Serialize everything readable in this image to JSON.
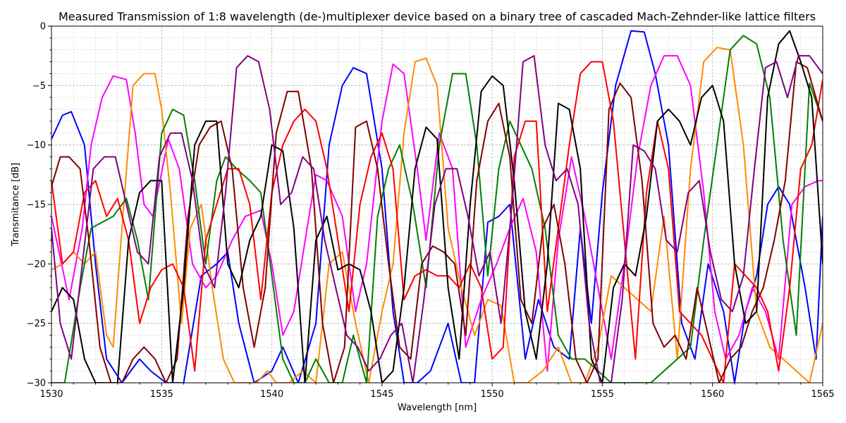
{
  "chart_data": {
    "type": "line",
    "title": "Measured Transmission of 1:8 wavelength (de-)multiplexer device based on a binary tree of cascaded Mach-Zehnder-like lattice filters",
    "xlabel": "Wavelength [nm]",
    "ylabel": "Transmitance [dB]",
    "xlim": [
      1530,
      1565
    ],
    "ylim": [
      -30,
      0
    ],
    "x_ticks": [
      1530,
      1535,
      1540,
      1545,
      1550,
      1555,
      1560,
      1565
    ],
    "x_tick_labels": [
      "1530",
      "1535",
      "1540",
      "1545",
      "1550",
      "1555",
      "1560",
      "1565"
    ],
    "y_ticks": [
      0,
      -5,
      -10,
      -15,
      -20,
      -25,
      -30
    ],
    "y_tick_labels": [
      "0",
      "−5",
      "−10",
      "−15",
      "−20",
      "−25",
      "−30"
    ],
    "grid": true,
    "series": [
      {
        "color": "#0000ff",
        "x": [
          1530.0,
          1530.5,
          1530.9,
          1531.5,
          1532.0,
          1532.5,
          1533.2,
          1534.0,
          1534.5,
          1535.2,
          1536.0,
          1536.8,
          1537.5,
          1538.0,
          1538.5,
          1539.2,
          1540.0,
          1540.5,
          1541.2,
          1542.0,
          1542.6,
          1543.2,
          1543.7,
          1544.3,
          1545.0,
          1545.5,
          1546.0,
          1546.6,
          1547.2,
          1548.0,
          1548.6,
          1549.2,
          1549.8,
          1550.3,
          1550.8,
          1551.5,
          1552.1,
          1552.8,
          1553.5,
          1554.0,
          1554.5,
          1555.0,
          1555.6,
          1556.3,
          1556.9,
          1557.4,
          1558.0,
          1558.6,
          1559.2,
          1559.8,
          1560.5,
          1561.0,
          1561.5,
          1562.0,
          1562.5,
          1563.0,
          1563.5,
          1564.2,
          1564.7,
          1565.0
        ],
        "y": [
          -9.5,
          -7.5,
          -7.2,
          -10,
          -20,
          -28,
          -30,
          -28,
          -29,
          -30,
          -30,
          -21,
          -20,
          -19,
          -25,
          -30,
          -29,
          -27,
          -30,
          -25,
          -10,
          -5,
          -3.5,
          -4,
          -12,
          -24,
          -30,
          -30,
          -29,
          -25,
          -30,
          -30,
          -16.5,
          -16,
          -15,
          -28,
          -23,
          -27,
          -28,
          -17,
          -25,
          -14,
          -5,
          -0.4,
          -0.5,
          -4,
          -10,
          -25,
          -28,
          -20,
          -24,
          -30,
          -24,
          -21,
          -15,
          -13.5,
          -15,
          -22,
          -28,
          -16
        ]
      },
      {
        "color": "#ff00ff",
        "x": [
          1530.0,
          1530.8,
          1531.4,
          1531.8,
          1532.3,
          1532.8,
          1533.4,
          1533.8,
          1534.2,
          1534.6,
          1535.3,
          1535.8,
          1536.4,
          1537.0,
          1537.5,
          1538.2,
          1538.8,
          1539.5,
          1540.0,
          1540.5,
          1541.0,
          1541.6,
          1542.0,
          1542.5,
          1543.2,
          1543.8,
          1544.3,
          1545.0,
          1545.5,
          1546.0,
          1546.6,
          1547.0,
          1547.6,
          1548.2,
          1548.8,
          1549.5,
          1550.2,
          1550.8,
          1551.4,
          1552.0,
          1552.5,
          1553.0,
          1553.6,
          1554.2,
          1554.8,
          1555.4,
          1556.0,
          1556.6,
          1557.2,
          1557.8,
          1558.4,
          1559.0,
          1559.6,
          1560.1,
          1560.6,
          1561.2,
          1561.8,
          1562.4,
          1563.0,
          1563.6,
          1564.2,
          1564.8,
          1565.0
        ],
        "y": [
          -16,
          -23,
          -17,
          -10,
          -6,
          -4.2,
          -4.5,
          -9,
          -15,
          -16,
          -9.5,
          -12,
          -20,
          -22,
          -21,
          -18,
          -16,
          -15.5,
          -20,
          -26,
          -24,
          -17,
          -12.5,
          -13,
          -16,
          -24,
          -20,
          -8,
          -3.2,
          -4,
          -12,
          -18,
          -9,
          -12,
          -27,
          -23,
          -20,
          -17,
          -14.5,
          -19,
          -29,
          -18,
          -11,
          -16,
          -22,
          -28,
          -20,
          -11,
          -5,
          -2.5,
          -2.5,
          -5,
          -14,
          -24,
          -28,
          -26,
          -22,
          -24,
          -28,
          -15,
          -13.5,
          -13,
          -13
        ]
      },
      {
        "color": "#ff8c00",
        "x": [
          1530.0,
          1530.5,
          1531.0,
          1531.5,
          1532.0,
          1532.5,
          1532.8,
          1533.2,
          1533.7,
          1534.2,
          1534.7,
          1535.0,
          1535.4,
          1535.9,
          1536.3,
          1536.8,
          1537.3,
          1537.8,
          1538.3,
          1538.8,
          1539.3,
          1539.8,
          1540.2,
          1540.8,
          1541.4,
          1542.0,
          1542.6,
          1543.2,
          1543.8,
          1544.4,
          1545.0,
          1545.5,
          1546.0,
          1546.5,
          1547.0,
          1547.5,
          1548.0,
          1548.6,
          1549.2,
          1549.8,
          1550.4,
          1551.0,
          1551.6,
          1552.3,
          1553.0,
          1553.6,
          1554.2,
          1554.8,
          1555.4,
          1556.0,
          1556.6,
          1557.2,
          1557.8,
          1558.4,
          1559.0,
          1559.6,
          1560.2,
          1560.8,
          1561.4,
          1562.0,
          1562.6,
          1563.2,
          1563.8,
          1564.4,
          1565.0
        ],
        "y": [
          -20.5,
          -20,
          -19,
          -20,
          -19,
          -26,
          -27,
          -17,
          -5,
          -4,
          -4,
          -7,
          -14,
          -25,
          -17,
          -15,
          -22,
          -28,
          -30,
          -30,
          -30,
          -29,
          -30,
          -30,
          -29,
          -30,
          -20,
          -19,
          -25,
          -30,
          -24,
          -20,
          -9,
          -3,
          -2.7,
          -5,
          -17,
          -22,
          -26,
          -23,
          -23.5,
          -30,
          -30,
          -29,
          -27,
          -30,
          -30,
          -27,
          -21,
          -22,
          -23,
          -24,
          -16,
          -28,
          -12,
          -3,
          -1.8,
          -2,
          -10,
          -24,
          -27,
          -28,
          -29,
          -30,
          -25
        ]
      },
      {
        "color": "#008000",
        "x": [
          1530.0,
          1530.6,
          1531.3,
          1531.8,
          1532.3,
          1532.8,
          1533.4,
          1533.9,
          1534.4,
          1535.0,
          1535.5,
          1536.0,
          1536.5,
          1537.0,
          1537.5,
          1537.9,
          1538.4,
          1539.0,
          1539.5,
          1540.0,
          1540.5,
          1541.0,
          1541.5,
          1542.0,
          1542.6,
          1543.2,
          1543.7,
          1544.3,
          1544.8,
          1545.3,
          1545.8,
          1546.4,
          1547.0,
          1547.6,
          1548.2,
          1548.8,
          1549.3,
          1549.8,
          1550.3,
          1550.8,
          1551.3,
          1551.8,
          1552.4,
          1553.0,
          1553.6,
          1554.2,
          1554.8,
          1555.4,
          1556.0,
          1556.6,
          1557.2,
          1557.8,
          1558.4,
          1559.0,
          1559.6,
          1560.2,
          1560.8,
          1561.4,
          1562.0,
          1562.6,
          1563.2,
          1563.8,
          1564.4,
          1565.0
        ],
        "y": [
          -30,
          -30,
          -22,
          -17,
          -16.5,
          -16,
          -14.5,
          -18,
          -23,
          -9,
          -7,
          -7.5,
          -13,
          -20,
          -13,
          -11,
          -12,
          -13,
          -14,
          -21,
          -28,
          -30,
          -30,
          -28,
          -30,
          -30,
          -26,
          -30,
          -16,
          -12,
          -10,
          -15,
          -22,
          -10,
          -4,
          -4,
          -10,
          -21,
          -12,
          -8,
          -10,
          -12,
          -17,
          -26,
          -28,
          -28,
          -29,
          -30,
          -30,
          -30,
          -30,
          -29,
          -28,
          -27,
          -18,
          -10,
          -2,
          -0.8,
          -1.5,
          -6,
          -18,
          -26,
          -4.8,
          -8
        ]
      },
      {
        "color": "#ff0000",
        "x": [
          1530.0,
          1530.5,
          1531.0,
          1531.5,
          1532.0,
          1532.5,
          1533.0,
          1533.5,
          1534.0,
          1534.5,
          1535.0,
          1535.5,
          1536.0,
          1536.5,
          1537.0,
          1537.5,
          1538.0,
          1538.5,
          1539.0,
          1539.5,
          1540.0,
          1540.5,
          1541.0,
          1541.5,
          1542.0,
          1542.5,
          1543.0,
          1543.5,
          1544.0,
          1544.5,
          1545.0,
          1545.5,
          1546.0,
          1546.5,
          1547.0,
          1547.5,
          1548.0,
          1548.5,
          1549.0,
          1549.5,
          1550.0,
          1550.5,
          1551.0,
          1551.5,
          1552.0,
          1552.5,
          1553.0,
          1553.5,
          1554.0,
          1554.5,
          1555.0,
          1555.5,
          1556.0,
          1556.5,
          1557.0,
          1557.5,
          1558.0,
          1558.5,
          1559.0,
          1559.5,
          1560.0,
          1560.5,
          1561.0,
          1561.5,
          1562.0,
          1562.5,
          1563.0,
          1563.5,
          1564.0,
          1564.5,
          1565.0
        ],
        "y": [
          -13,
          -20,
          -19,
          -14,
          -13,
          -16,
          -14.5,
          -18,
          -25,
          -22,
          -20.5,
          -20,
          -22,
          -29,
          -18,
          -15,
          -12,
          -12,
          -15,
          -23,
          -14,
          -10,
          -8,
          -7,
          -8,
          -12,
          -18,
          -24,
          -15,
          -11,
          -9,
          -12,
          -23,
          -21,
          -20.5,
          -21,
          -21,
          -22,
          -20,
          -22,
          -28,
          -27,
          -11,
          -8,
          -8,
          -24,
          -17,
          -10,
          -4,
          -3,
          -3,
          -8,
          -18,
          -28,
          -14,
          -8,
          -12,
          -24,
          -25,
          -26,
          -28,
          -30,
          -20,
          -21,
          -22,
          -24,
          -29,
          -22,
          -12,
          -10,
          -4.5
        ]
      },
      {
        "color": "#800000",
        "x": [
          1530.0,
          1530.4,
          1530.8,
          1531.3,
          1531.7,
          1532.2,
          1532.7,
          1533.2,
          1533.7,
          1534.2,
          1534.7,
          1535.2,
          1535.7,
          1536.2,
          1536.7,
          1537.2,
          1537.7,
          1538.2,
          1538.7,
          1539.2,
          1539.7,
          1540.2,
          1540.7,
          1541.2,
          1541.8,
          1542.3,
          1542.8,
          1543.3,
          1543.8,
          1544.3,
          1544.8,
          1545.3,
          1545.8,
          1546.3,
          1546.8,
          1547.3,
          1547.8,
          1548.3,
          1548.8,
          1549.3,
          1549.8,
          1550.3,
          1550.8,
          1551.3,
          1551.8,
          1552.3,
          1552.8,
          1553.3,
          1553.8,
          1554.3,
          1554.8,
          1555.3,
          1555.8,
          1556.3,
          1556.8,
          1557.3,
          1557.8,
          1558.3,
          1558.8,
          1559.3,
          1559.8,
          1560.3,
          1560.8,
          1561.3,
          1561.8,
          1562.3,
          1562.8,
          1563.3,
          1563.8,
          1564.3,
          1565.0
        ],
        "y": [
          -13.5,
          -11,
          -11,
          -12,
          -18,
          -27,
          -30,
          -30,
          -28,
          -27,
          -28,
          -30,
          -28,
          -16,
          -10,
          -8.5,
          -8,
          -12,
          -22,
          -27,
          -22,
          -9,
          -5.5,
          -5.5,
          -12,
          -25,
          -30,
          -27,
          -8.5,
          -8,
          -12,
          -20,
          -27,
          -28,
          -20,
          -18.5,
          -19,
          -20,
          -26,
          -13,
          -8,
          -6.5,
          -11,
          -23,
          -25,
          -17,
          -15,
          -20,
          -28,
          -30,
          -28,
          -7,
          -4.8,
          -6,
          -13,
          -25,
          -27,
          -26,
          -28,
          -22,
          -26,
          -30,
          -28,
          -27,
          -24,
          -22,
          -18,
          -13,
          -3,
          -3.5,
          -8
        ]
      },
      {
        "color": "#000000",
        "x": [
          1530.0,
          1530.5,
          1531.0,
          1531.5,
          1532.0,
          1532.5,
          1533.0,
          1533.5,
          1534.0,
          1534.5,
          1535.0,
          1535.5,
          1536.0,
          1536.5,
          1537.0,
          1537.5,
          1538.0,
          1538.5,
          1539.0,
          1539.5,
          1540.0,
          1540.5,
          1541.0,
          1541.5,
          1542.0,
          1542.5,
          1543.0,
          1543.5,
          1544.0,
          1544.5,
          1545.0,
          1545.5,
          1546.0,
          1546.5,
          1547.0,
          1547.5,
          1548.0,
          1548.5,
          1549.0,
          1549.5,
          1550.0,
          1550.5,
          1551.0,
          1551.5,
          1552.0,
          1552.5,
          1553.0,
          1553.5,
          1554.0,
          1554.5,
          1555.0,
          1555.5,
          1556.0,
          1556.5,
          1557.0,
          1557.5,
          1558.0,
          1558.5,
          1559.0,
          1559.5,
          1560.0,
          1560.5,
          1561.0,
          1561.5,
          1562.0,
          1562.5,
          1563.0,
          1563.5,
          1564.0,
          1564.5,
          1565.0
        ],
        "y": [
          -24,
          -22,
          -23,
          -28,
          -30,
          -30,
          -30,
          -18,
          -14,
          -13,
          -13,
          -30,
          -22,
          -10,
          -8,
          -8,
          -20,
          -22,
          -18,
          -16,
          -10,
          -10.5,
          -17,
          -30,
          -18,
          -16,
          -20.5,
          -20,
          -20.5,
          -24,
          -30,
          -29,
          -22,
          -12,
          -8.5,
          -9.5,
          -22,
          -28,
          -15,
          -5.5,
          -4.2,
          -5,
          -13,
          -24,
          -28,
          -20,
          -6.5,
          -7,
          -12,
          -28,
          -30,
          -22,
          -20,
          -21,
          -16,
          -8,
          -7,
          -8,
          -10,
          -6,
          -5,
          -8,
          -20,
          -25,
          -24,
          -6,
          -1.5,
          -0.4,
          -3,
          -6,
          -20
        ]
      },
      {
        "color": "#800080",
        "x": [
          1530.0,
          1530.4,
          1530.9,
          1531.4,
          1531.9,
          1532.4,
          1532.9,
          1533.4,
          1533.9,
          1534.4,
          1534.9,
          1535.4,
          1535.9,
          1536.4,
          1536.9,
          1537.4,
          1537.9,
          1538.4,
          1538.9,
          1539.4,
          1539.9,
          1540.4,
          1540.9,
          1541.4,
          1541.9,
          1542.4,
          1542.9,
          1543.4,
          1543.9,
          1544.4,
          1544.9,
          1545.4,
          1545.9,
          1546.4,
          1546.9,
          1547.4,
          1547.9,
          1548.4,
          1548.9,
          1549.4,
          1549.9,
          1550.4,
          1550.9,
          1551.4,
          1551.9,
          1552.4,
          1552.9,
          1553.4,
          1553.9,
          1554.4,
          1554.9,
          1555.4,
          1555.9,
          1556.4,
          1556.9,
          1557.4,
          1557.9,
          1558.4,
          1558.9,
          1559.4,
          1559.9,
          1560.4,
          1560.9,
          1561.4,
          1561.9,
          1562.4,
          1562.9,
          1563.4,
          1563.9,
          1564.4,
          1565.0
        ],
        "y": [
          -17,
          -25,
          -28,
          -20,
          -12,
          -11,
          -11,
          -15,
          -19,
          -20,
          -11,
          -9,
          -9,
          -13,
          -20,
          -22,
          -14,
          -3.5,
          -2.5,
          -3,
          -7,
          -15,
          -14,
          -11,
          -12,
          -18,
          -22,
          -26,
          -27,
          -29,
          -28,
          -26,
          -25,
          -30,
          -23,
          -15,
          -12,
          -12,
          -16,
          -21,
          -19,
          -25,
          -15,
          -3,
          -2.5,
          -10,
          -13,
          -12,
          -15,
          -25,
          -30,
          -30,
          -23,
          -10,
          -10.5,
          -12,
          -18,
          -19,
          -14,
          -13,
          -19,
          -23,
          -24,
          -21,
          -12,
          -3.5,
          -3,
          -6,
          -2.5,
          -2.5,
          -4
        ]
      }
    ]
  }
}
